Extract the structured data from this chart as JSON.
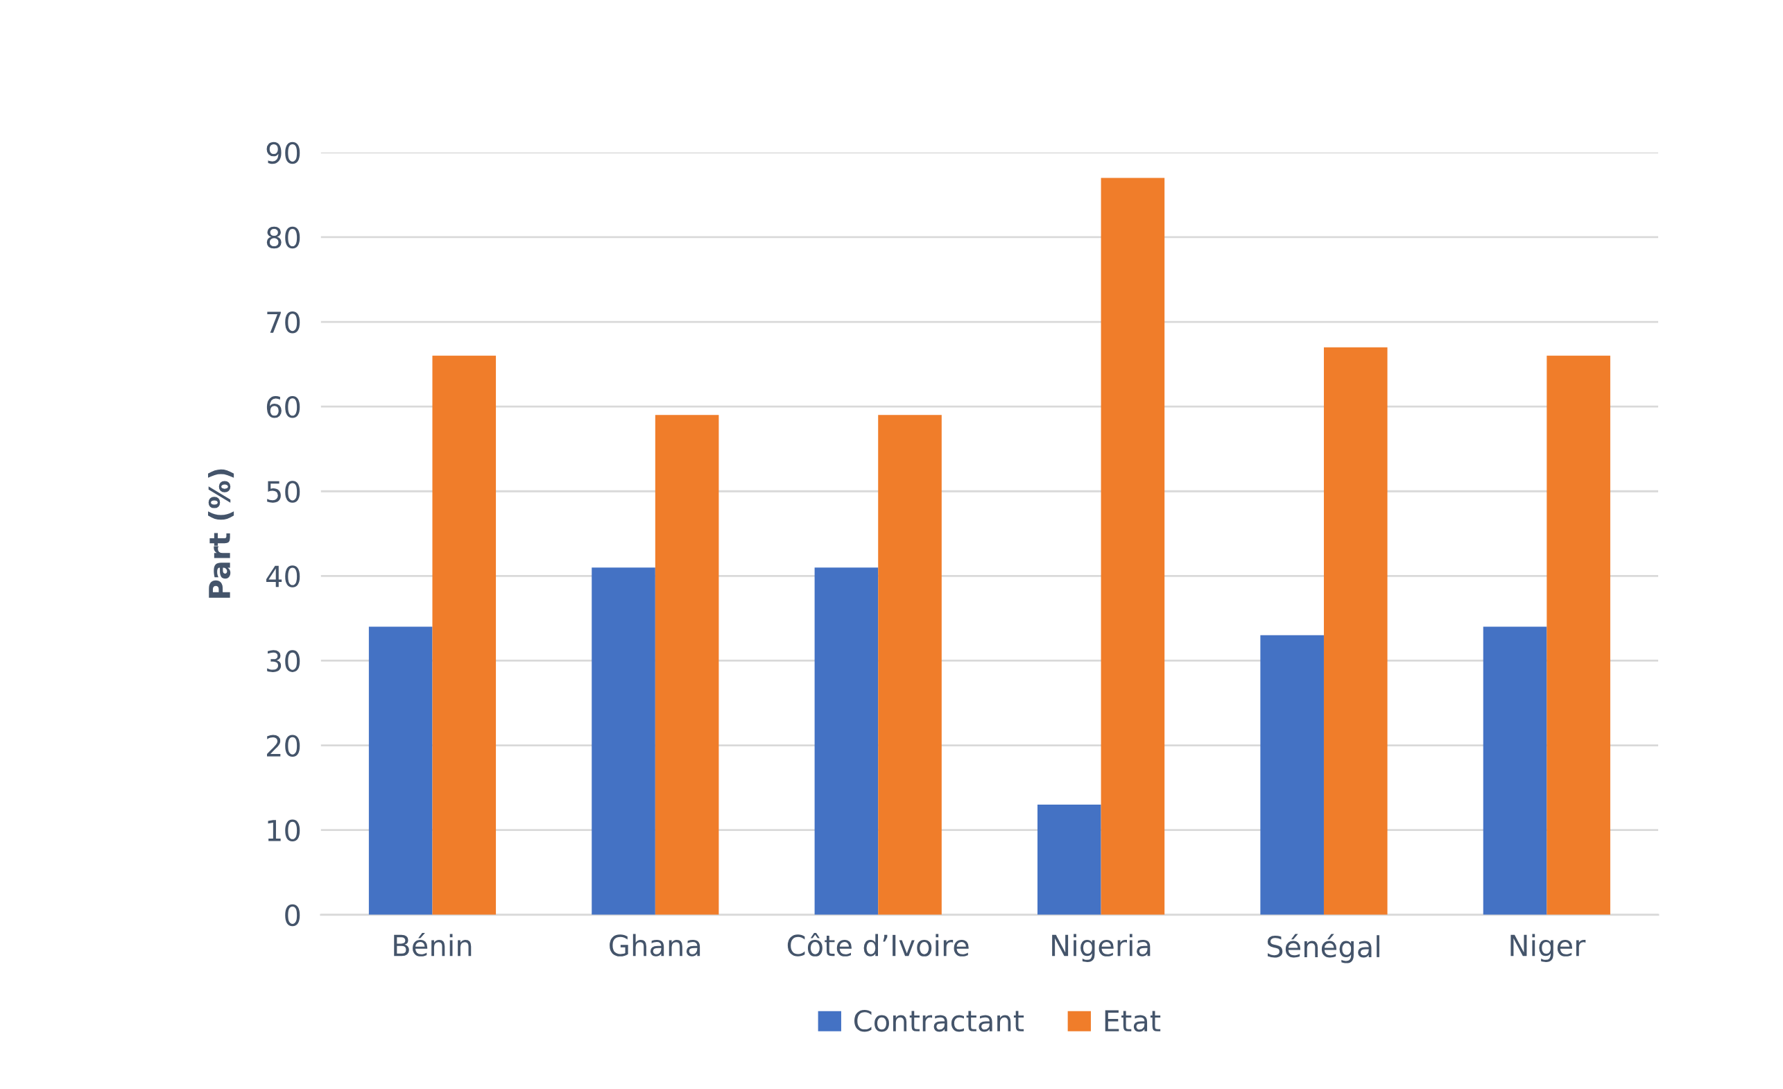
{
  "chart_data": {
    "type": "bar",
    "ylabel": "Part (%)",
    "categories": [
      "Bénin",
      "Ghana",
      "Côte d’Ivoire",
      "Nigeria",
      "Sénégal",
      "Niger"
    ],
    "series": [
      {
        "name": "Contractant",
        "color": "#4472c4",
        "values": [
          34,
          41,
          41,
          13,
          33,
          34
        ]
      },
      {
        "name": "Etat",
        "color": "#f07d2a",
        "values": [
          66,
          59,
          59,
          87,
          67,
          66
        ]
      }
    ],
    "ylim": [
      0,
      90
    ],
    "yticks": [
      0,
      10,
      20,
      30,
      40,
      50,
      60,
      70,
      80,
      90
    ],
    "grid": "y",
    "legend": "bottom"
  }
}
